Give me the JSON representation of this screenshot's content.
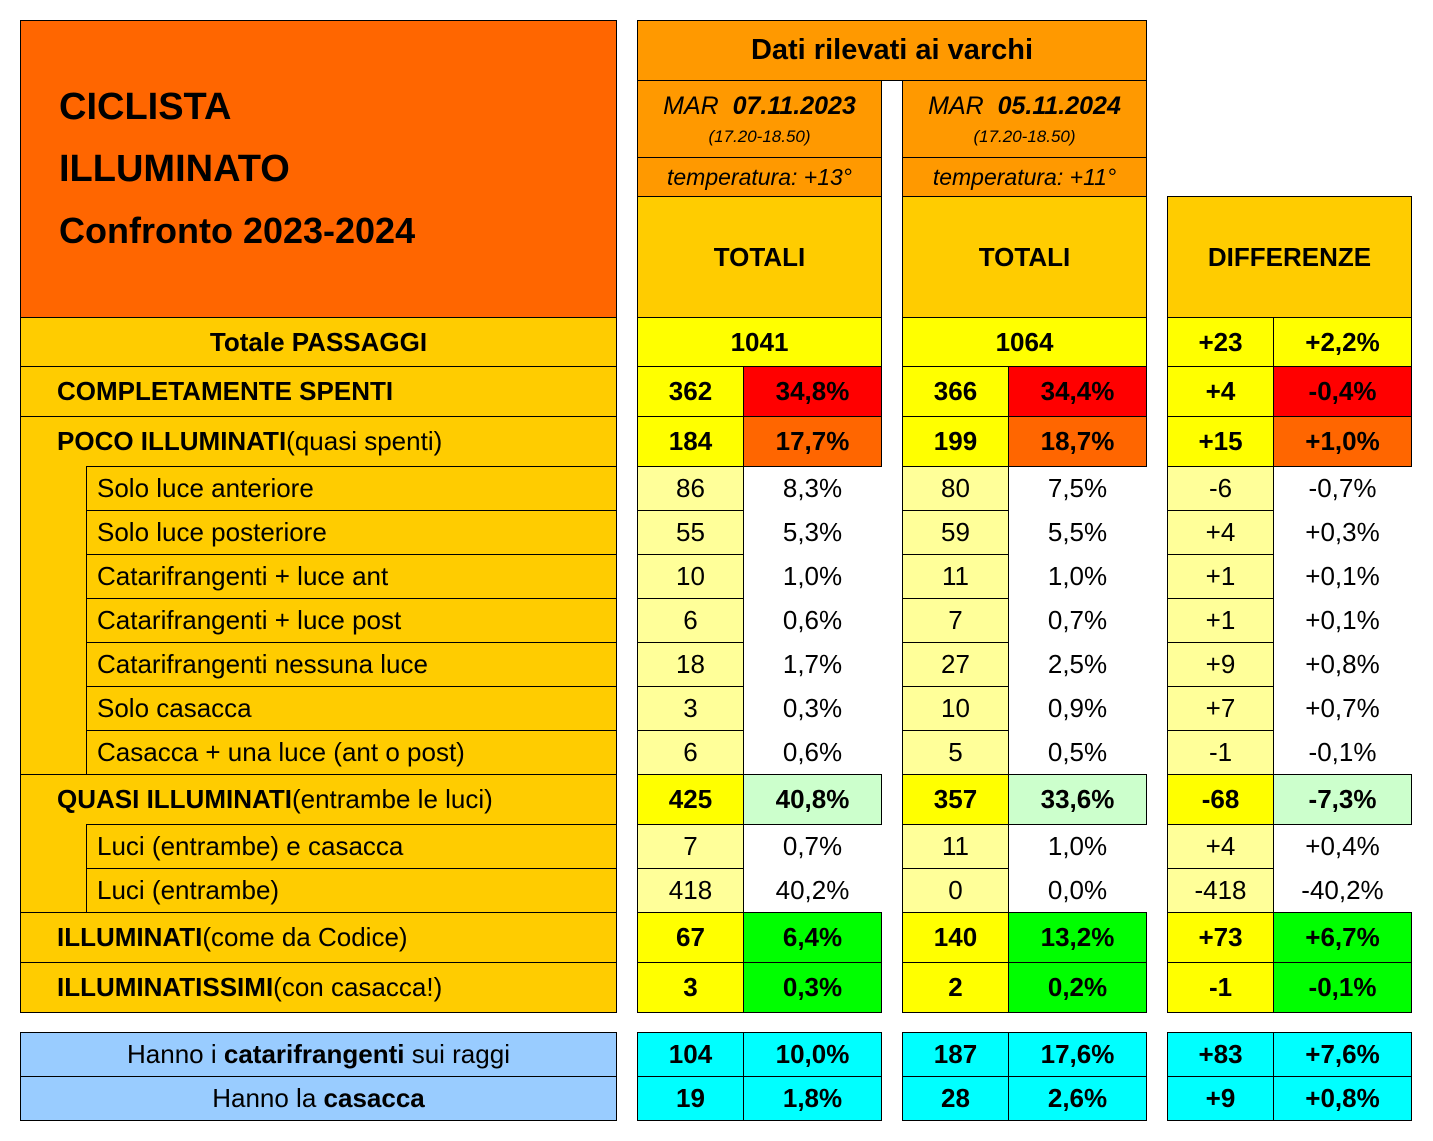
{
  "header": {
    "title_line1": "CICLISTA",
    "title_line2": "ILLUMINATO",
    "title_line3": "Confronto 2023-2024",
    "gates_label": "Dati rilevati ai varchi",
    "col2023": {
      "day": "MAR",
      "date": "07.11.2023",
      "time": "(17.20-18.50)",
      "temp": "temperatura: +13°",
      "totals": "TOTALI"
    },
    "col2024": {
      "day": "MAR",
      "date": "05.11.2024",
      "time": "(17.20-18.50)",
      "temp": "temperatura: +11°",
      "totals": "TOTALI"
    },
    "diff_label": "DIFFERENZE"
  },
  "total": {
    "label": "Totale PASSAGGI",
    "v2023": "1041",
    "v2024": "1064",
    "diff": "+23",
    "diff_pct": "+2,2%"
  },
  "main_rows": [
    {
      "label": "COMPLETAMENTE SPENTI",
      "note": "",
      "n2023": "362",
      "p2023": "34,8%",
      "n2024": "366",
      "p2024": "34,4%",
      "dn": "+4",
      "dp": "-0,4%"
    },
    {
      "label": "POCO ILLUMINATI",
      "note": " (quasi spenti)",
      "n2023": "184",
      "p2023": "17,7%",
      "n2024": "199",
      "p2024": "18,7%",
      "dn": "+15",
      "dp": "+1,0%"
    },
    {
      "label": "QUASI ILLUMINATI",
      "note": " (entrambe le luci)",
      "n2023": "425",
      "p2023": "40,8%",
      "n2024": "357",
      "p2024": "33,6%",
      "dn": "-68",
      "dp": "-7,3%"
    },
    {
      "label": "ILLUMINATI",
      "note": " (come da Codice)",
      "n2023": "67",
      "p2023": "6,4%",
      "n2024": "140",
      "p2024": "13,2%",
      "dn": "+73",
      "dp": "+6,7%"
    },
    {
      "label": "ILLUMINATISSIMI",
      "note": " (con casacca!)",
      "n2023": "3",
      "p2023": "0,3%",
      "n2024": "2",
      "p2024": "0,2%",
      "dn": "-1",
      "dp": "-0,1%"
    }
  ],
  "sub_rows": [
    {
      "label": "Solo luce anteriore",
      "n2023": "86",
      "p2023": "8,3%",
      "n2024": "80",
      "p2024": "7,5%",
      "dn": "-6",
      "dp": "-0,7%"
    },
    {
      "label": "Solo luce posteriore",
      "n2023": "55",
      "p2023": "5,3%",
      "n2024": "59",
      "p2024": "5,5%",
      "dn": "+4",
      "dp": "+0,3%"
    },
    {
      "label": "Catarifrangenti + luce ant",
      "n2023": "10",
      "p2023": "1,0%",
      "n2024": "11",
      "p2024": "1,0%",
      "dn": "+1",
      "dp": "+0,1%"
    },
    {
      "label": "Catarifrangenti + luce post",
      "n2023": "6",
      "p2023": "0,6%",
      "n2024": "7",
      "p2024": "0,7%",
      "dn": "+1",
      "dp": "+0,1%"
    },
    {
      "label": "Catarifrangenti nessuna luce",
      "n2023": "18",
      "p2023": "1,7%",
      "n2024": "27",
      "p2024": "2,5%",
      "dn": "+9",
      "dp": "+0,8%"
    },
    {
      "label": "Solo casacca",
      "n2023": "3",
      "p2023": "0,3%",
      "n2024": "10",
      "p2024": "0,9%",
      "dn": "+7",
      "dp": "+0,7%"
    },
    {
      "label": "Casacca + una luce (ant o post)",
      "n2023": "6",
      "p2023": "0,6%",
      "n2024": "5",
      "p2024": "0,5%",
      "dn": "-1",
      "dp": "-0,1%"
    },
    {
      "label": "Luci (entrambe) e casacca",
      "n2023": "7",
      "p2023": "0,7%",
      "n2024": "11",
      "p2024": "1,0%",
      "dn": "+4",
      "dp": "+0,4%"
    },
    {
      "label": "Luci (entrambe)",
      "n2023": "418",
      "p2023": "40,2%",
      "n2024": "0",
      "p2024": "0,0%",
      "dn": "-418",
      "dp": "-40,2%"
    }
  ],
  "extra_rows": [
    {
      "pre": "Hanno i ",
      "bold": "catarifrangenti",
      "post": " sui raggi",
      "n2023": "104",
      "p2023": "10,0%",
      "n2024": "187",
      "p2024": "17,6%",
      "dn": "+83",
      "dp": "+7,6%"
    },
    {
      "pre": "Hanno la ",
      "bold": "casacca",
      "post": "",
      "n2023": "19",
      "p2023": "1,8%",
      "n2024": "28",
      "p2024": "2,6%",
      "dn": "+9",
      "dp": "+0,8%"
    }
  ],
  "colors": {
    "title_bg": "#ff6600",
    "header_bg": "#ff9900",
    "totals_bg": "#ffcc00",
    "yellow": "#ffff00",
    "light_yellow": "#ffff99",
    "red": "#ff0000",
    "orange": "#ff6600",
    "light_green": "#ccffcc",
    "green": "#00ff00",
    "light_blue": "#99ccff",
    "cyan": "#00ffff"
  }
}
